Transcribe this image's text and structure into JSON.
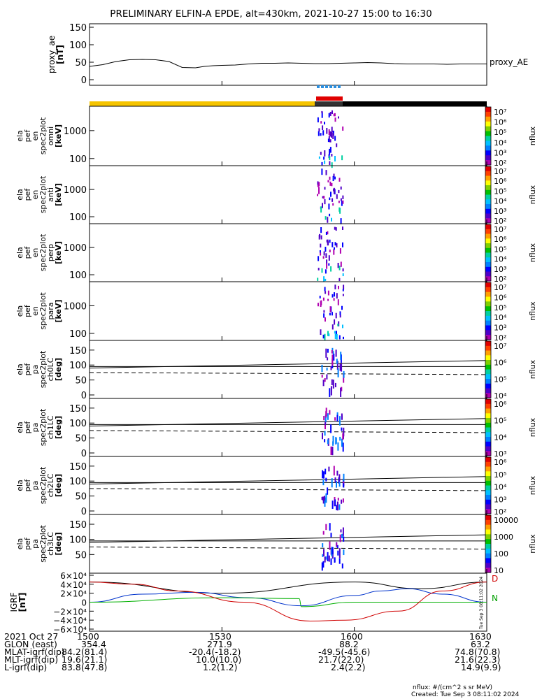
{
  "title": "PRELIMINARY ELFIN-A EPDE, alt=430km, 2021-10-27 15:00 to 16:30",
  "chart_data": {
    "type": "line",
    "x_tick_labels": [
      "1500",
      "1530",
      "1600",
      "1630"
    ],
    "x_ticks_min": [
      0,
      30,
      60,
      90
    ],
    "panels": [
      {
        "kind": "line",
        "ylabel": [
          "proxy_ae",
          "[nT]"
        ],
        "yticks": [
          "150",
          "100",
          "50",
          "0"
        ],
        "ylim": [
          0,
          150
        ],
        "series": [
          {
            "name": "proxy_AE",
            "x": [
              0,
              3,
              6,
              9,
              12,
              15,
              18,
              21,
              24,
              26,
              28,
              30,
              33,
              36,
              39,
              42,
              45,
              48,
              51,
              54,
              57,
              60,
              63,
              66,
              69,
              72,
              75,
              78,
              81,
              84,
              87,
              90
            ],
            "y": [
              38,
              43,
              52,
              57,
              58,
              57,
              52,
              35,
              34,
              38,
              40,
              41,
              42,
              45,
              47,
              47,
              48,
              47,
              46,
              46,
              47,
              48,
              49,
              48,
              46,
              45,
              45,
              45,
              44,
              45,
              45,
              45
            ]
          }
        ]
      },
      {
        "kind": "spectrogram",
        "ylabel": [
          "ela",
          "pef",
          "en",
          "spec2plot",
          "omni",
          "[keV]"
        ],
        "yticks": [
          "1000",
          "100"
        ],
        "colorbar": [
          "10⁷",
          "10⁶",
          "10⁵",
          "10⁴",
          "10³",
          "10²"
        ],
        "cblabel": "nflux"
      },
      {
        "kind": "spectrogram",
        "ylabel": [
          "ela",
          "pef",
          "en",
          "spec2plot",
          "anti",
          "[keV]"
        ],
        "yticks": [
          "1000",
          "100"
        ],
        "colorbar": [
          "10⁷",
          "10⁶",
          "10⁵",
          "10⁴",
          "10³",
          "10²"
        ],
        "cblabel": "nflux"
      },
      {
        "kind": "spectrogram",
        "ylabel": [
          "ela",
          "pef",
          "en",
          "spec2plot",
          "perp",
          "[keV]"
        ],
        "yticks": [
          "1000",
          "100"
        ],
        "colorbar": [
          "10⁷",
          "10⁶",
          "10⁵",
          "10⁴",
          "10³",
          "10²"
        ],
        "cblabel": "nflux"
      },
      {
        "kind": "spectrogram",
        "ylabel": [
          "ela",
          "pef",
          "en",
          "spec2plot",
          "para",
          "[keV]"
        ],
        "yticks": [
          "1000",
          "100"
        ],
        "colorbar": [
          "10⁷",
          "10⁶",
          "10⁵",
          "10⁴",
          "10³",
          "10²"
        ],
        "cblabel": "nflux"
      },
      {
        "kind": "pitch",
        "ylabel": [
          "ela",
          "pef",
          "pa",
          "spec2plot",
          "ch0LC",
          "[deg]"
        ],
        "yticks": [
          "150",
          "100",
          "50",
          "0"
        ],
        "colorbar": [
          "10⁷",
          "10⁶",
          "10⁵",
          "10⁴"
        ],
        "cblabel": "nflux"
      },
      {
        "kind": "pitch",
        "ylabel": [
          "ela",
          "pef",
          "pa",
          "spec2plot",
          "ch1LC",
          "[deg]"
        ],
        "yticks": [
          "150",
          "100",
          "50",
          "0"
        ],
        "colorbar": [
          "10⁶",
          "10⁵",
          "10⁴",
          "10³"
        ],
        "cblabel": "nflux"
      },
      {
        "kind": "pitch",
        "ylabel": [
          "ela",
          "pef",
          "pa",
          "spec2plot",
          "ch2LC",
          "[deg]"
        ],
        "yticks": [
          "150",
          "100",
          "50",
          "0"
        ],
        "colorbar": [
          "10⁶",
          "10⁵",
          "10⁴",
          "10³",
          "10²"
        ],
        "cblabel": "nflux"
      },
      {
        "kind": "pitch",
        "ylabel": [
          "ela",
          "pef",
          "pa",
          "spec2plot",
          "ch3LC",
          "[deg]"
        ],
        "yticks": [
          "150",
          "100",
          "50"
        ],
        "colorbar": [
          "10000",
          "1000",
          "100",
          "10"
        ],
        "cblabel": "nflux"
      },
      {
        "kind": "line",
        "ylabel": [
          "IGRF",
          "[nT]"
        ],
        "yticks": [
          "6×10⁴",
          "4×10⁴",
          "2×10⁴",
          "0",
          "−2×10⁴",
          "−4×10⁴",
          "−6×10⁴"
        ],
        "ylim": [
          -60000,
          60000
        ],
        "series": [
          {
            "name": "black",
            "x": [
              0,
              30,
              60,
              75,
              90
            ],
            "y": [
              45000,
              20000,
              45000,
              30000,
              45000
            ]
          },
          {
            "name": "blue",
            "x": [
              0,
              12,
              24,
              36,
              48,
              60,
              66,
              72,
              80,
              90
            ],
            "y": [
              0,
              18000,
              22000,
              10000,
              -8000,
              15000,
              25000,
              30000,
              18000,
              0
            ]
          },
          {
            "name": "green",
            "x": [
              0,
              30,
              47.5,
              48,
              60,
              90
            ],
            "y": [
              0,
              10000,
              8000,
              -10000,
              0,
              0
            ]
          },
          {
            "name": "red",
            "x": [
              0,
              10,
              20,
              35,
              50,
              58,
              70,
              80,
              90
            ],
            "y": [
              45000,
              40000,
              25000,
              0,
              -42000,
              -40000,
              -20000,
              25000,
              45000
            ]
          }
        ]
      }
    ]
  },
  "proxy_ae_label": "proxy_AE",
  "igrf_right_labels": {
    "d": "D",
    "n": "N"
  },
  "side_stamp": "Tue Sep  3 08:11:02 2024",
  "footer_rows": [
    [
      "2021 Oct 27",
      "1500",
      "1530",
      "1600",
      "1630"
    ],
    [
      "GLON (east)",
      "354.4",
      "271.9",
      "88.2",
      "63.2"
    ],
    [
      "MLAT-igrf(dip)",
      "84.2(81.4)",
      "-20.4(-18.2)",
      "-49.5(-45.6)",
      "74.8(70.8)"
    ],
    [
      "MLT-igrf(dip)",
      "19.6(21.1)",
      "10.0(10.0)",
      "21.7(22.0)",
      "21.6(22.3)"
    ],
    [
      "L-igrf(dip)",
      "83.8(47.8)",
      "1.2(1.2)",
      "2.4(2.2)",
      "14.9(9.9)"
    ]
  ],
  "footnote_1": "nflux: #/(cm^2 s sr MeV)",
  "footnote_2": "Created: Tue Sep  3 08:11:02 2024"
}
